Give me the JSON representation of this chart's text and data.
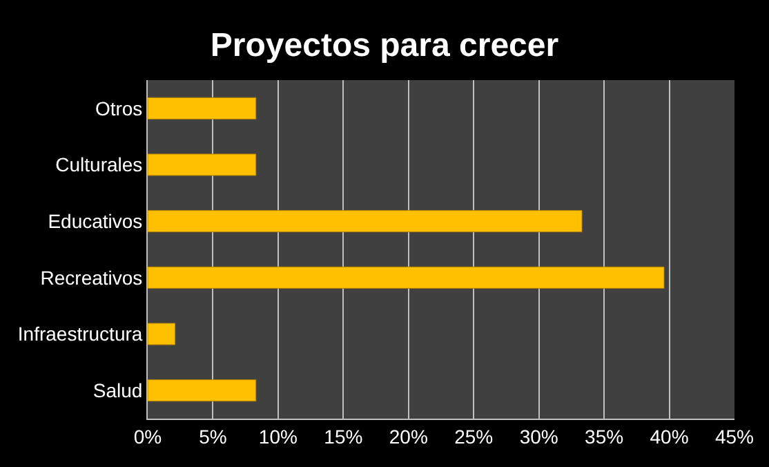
{
  "chart_data": {
    "type": "bar",
    "orientation": "horizontal",
    "title": "Proyectos para crecer",
    "categories": [
      "Otros",
      "Culturales",
      "Educativos",
      "Recreativos",
      "Infraestructura",
      "Salud"
    ],
    "values": [
      8.3,
      8.3,
      33.3,
      39.6,
      2.1,
      8.3
    ],
    "color": "#ffc000",
    "xlim": [
      0,
      45
    ],
    "xticks": [
      {
        "value": 0,
        "label": "0%"
      },
      {
        "value": 5,
        "label": "5%"
      },
      {
        "value": 10,
        "label": "10%"
      },
      {
        "value": 15,
        "label": "15%"
      },
      {
        "value": 20,
        "label": "20%"
      },
      {
        "value": 25,
        "label": "25%"
      },
      {
        "value": 30,
        "label": "30%"
      },
      {
        "value": 35,
        "label": "35%"
      },
      {
        "value": 40,
        "label": "40%"
      },
      {
        "value": 45,
        "label": "45%"
      }
    ],
    "grid": "x",
    "legend": false
  }
}
